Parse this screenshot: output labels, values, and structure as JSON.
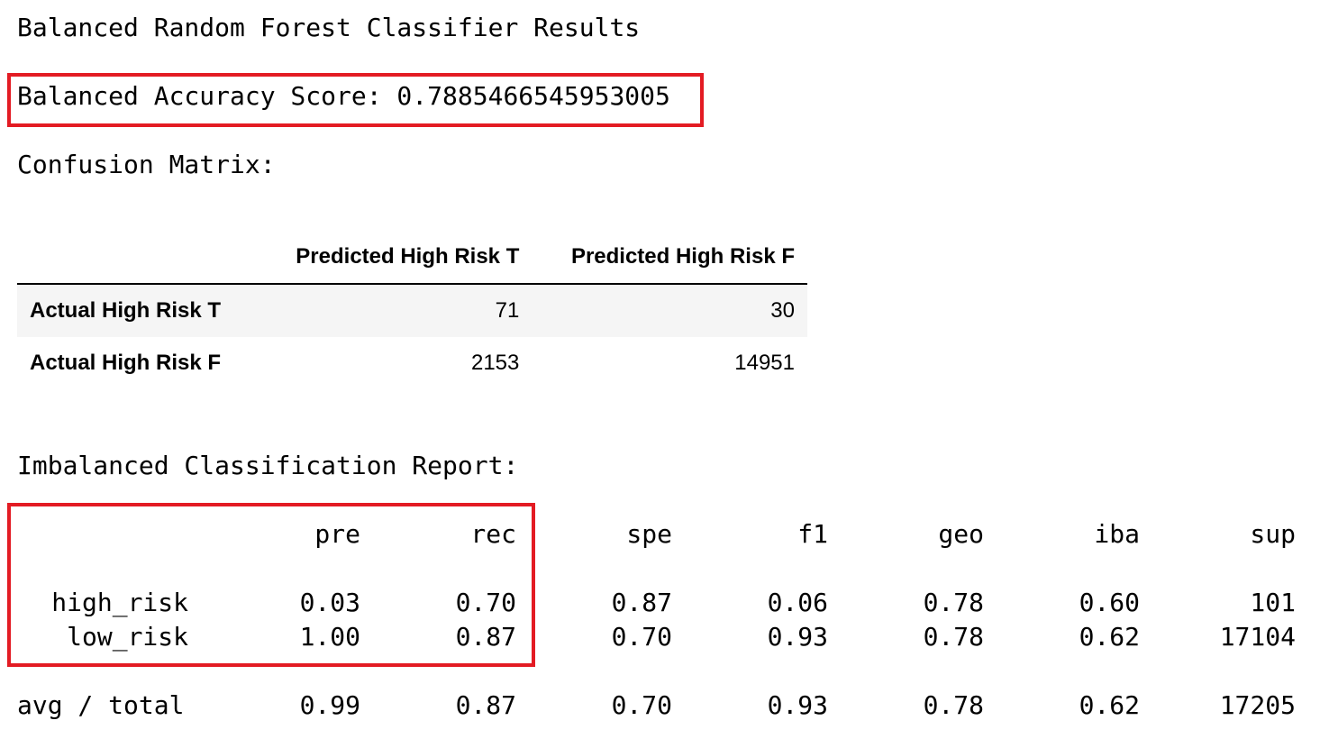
{
  "title": "Balanced Random Forest Classifier Results",
  "accuracy": {
    "label": "Balanced Accuracy Score: 0.7885466545953005",
    "highlight_color": "#e31b23"
  },
  "confusion": {
    "label": "Confusion Matrix:",
    "columns": [
      "",
      "Predicted High Risk T",
      "Predicted High Risk F"
    ],
    "rows": [
      {
        "label": "Actual High Risk T",
        "values": [
          "71",
          "30"
        ]
      },
      {
        "label": "Actual High Risk F",
        "values": [
          "2153",
          "14951"
        ]
      }
    ]
  },
  "report": {
    "label": "Imbalanced Classification Report:",
    "headers": [
      "pre",
      "rec",
      "spe",
      "f1",
      "geo",
      "iba",
      "sup"
    ],
    "rows": [
      {
        "label": "high_risk",
        "values": [
          "0.03",
          "0.70",
          "0.87",
          "0.06",
          "0.78",
          "0.60",
          "101"
        ]
      },
      {
        "label": "low_risk",
        "values": [
          "1.00",
          "0.87",
          "0.70",
          "0.93",
          "0.78",
          "0.62",
          "17104"
        ]
      },
      {
        "label": "avg / total",
        "values": [
          "0.99",
          "0.87",
          "0.70",
          "0.93",
          "0.78",
          "0.62",
          "17205"
        ]
      }
    ]
  }
}
